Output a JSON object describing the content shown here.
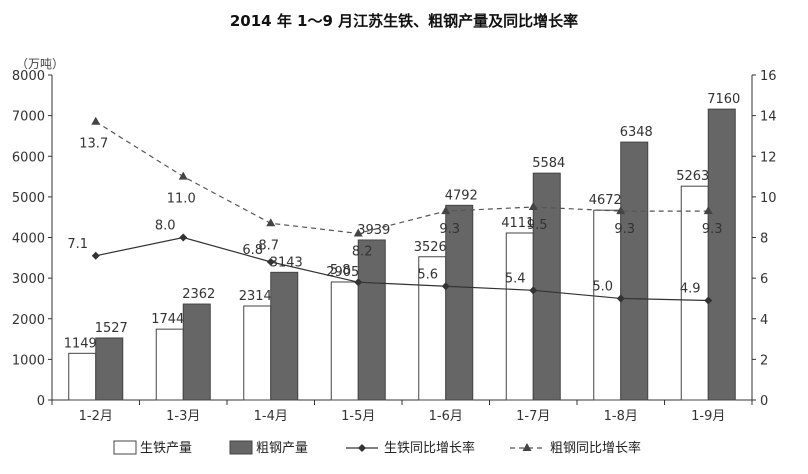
{
  "chart_data": {
    "type": "bar",
    "title": "2014 年 1～9 月江苏生铁、粗钢产量及同比增长率",
    "unit_label": "（万吨）",
    "categories": [
      "1-2月",
      "1-3月",
      "1-4月",
      "1-5月",
      "1-6月",
      "1-7月",
      "1-8月",
      "1-9月"
    ],
    "series": [
      {
        "name": "生铁产量",
        "kind": "bar",
        "axis": "left",
        "color": "#ffffff",
        "values": [
          1149,
          1744,
          2314,
          2905,
          3526,
          4111,
          4672,
          5263
        ]
      },
      {
        "name": "粗钢产量",
        "kind": "bar",
        "axis": "left",
        "color": "#666666",
        "values": [
          1527,
          2362,
          3143,
          3939,
          4792,
          5584,
          6348,
          7160
        ]
      },
      {
        "name": "生铁同比增长率",
        "kind": "line",
        "axis": "right",
        "style": "solid",
        "marker": "diamond",
        "values": [
          7.1,
          8.0,
          6.8,
          5.8,
          5.6,
          5.4,
          5.0,
          4.9
        ]
      },
      {
        "name": "粗钢同比增长率",
        "kind": "line",
        "axis": "right",
        "style": "dashed",
        "marker": "triangle",
        "values": [
          13.7,
          11.0,
          8.7,
          8.2,
          9.3,
          9.5,
          9.3,
          9.3
        ]
      }
    ],
    "ylim": [
      0,
      8000
    ],
    "y_ticks": [
      0,
      1000,
      2000,
      3000,
      4000,
      5000,
      6000,
      7000,
      8000
    ],
    "y2lim": [
      0,
      16
    ],
    "y2_ticks": [
      0,
      2,
      4,
      6,
      8,
      10,
      12,
      14,
      16
    ],
    "legend_position": "bottom",
    "grid": false
  }
}
